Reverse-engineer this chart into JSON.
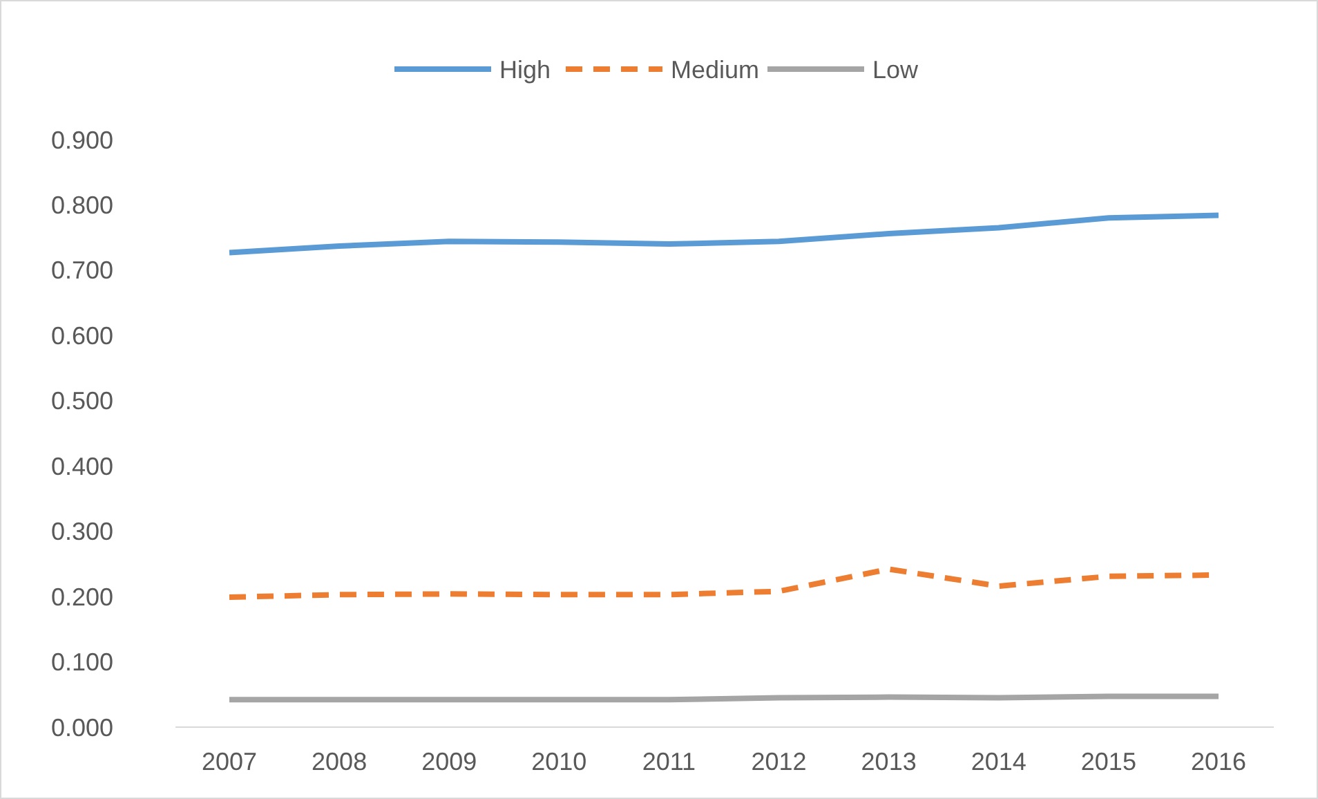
{
  "chart_data": {
    "type": "line",
    "categories": [
      "2007",
      "2008",
      "2009",
      "2010",
      "2011",
      "2012",
      "2013",
      "2014",
      "2015",
      "2016"
    ],
    "series": [
      {
        "name": "High",
        "color": "#5b9bd5",
        "line_style": "solid",
        "values": [
          0.727,
          0.737,
          0.744,
          0.743,
          0.74,
          0.744,
          0.756,
          0.765,
          0.78,
          0.784
        ]
      },
      {
        "name": "Medium",
        "color": "#ed7d31",
        "line_style": "dashed",
        "values": [
          0.199,
          0.203,
          0.204,
          0.203,
          0.203,
          0.208,
          0.242,
          0.216,
          0.231,
          0.233
        ]
      },
      {
        "name": "Low",
        "color": "#a5a5a5",
        "line_style": "solid",
        "values": [
          0.042,
          0.042,
          0.042,
          0.042,
          0.042,
          0.045,
          0.046,
          0.045,
          0.047,
          0.047
        ]
      }
    ],
    "ylim": [
      0,
      0.9
    ],
    "yticks": [
      {
        "value": 0,
        "label": "0.000"
      },
      {
        "value": 0.1,
        "label": "0.100"
      },
      {
        "value": 0.2,
        "label": "0.200"
      },
      {
        "value": 0.3,
        "label": "0.300"
      },
      {
        "value": 0.4,
        "label": "0.400"
      },
      {
        "value": 0.5,
        "label": "0.500"
      },
      {
        "value": 0.6,
        "label": "0.600"
      },
      {
        "value": 0.7,
        "label": "0.700"
      },
      {
        "value": 0.8,
        "label": "0.800"
      },
      {
        "value": 0.9,
        "label": "0.900"
      }
    ],
    "legend": "top",
    "marker": "none"
  }
}
